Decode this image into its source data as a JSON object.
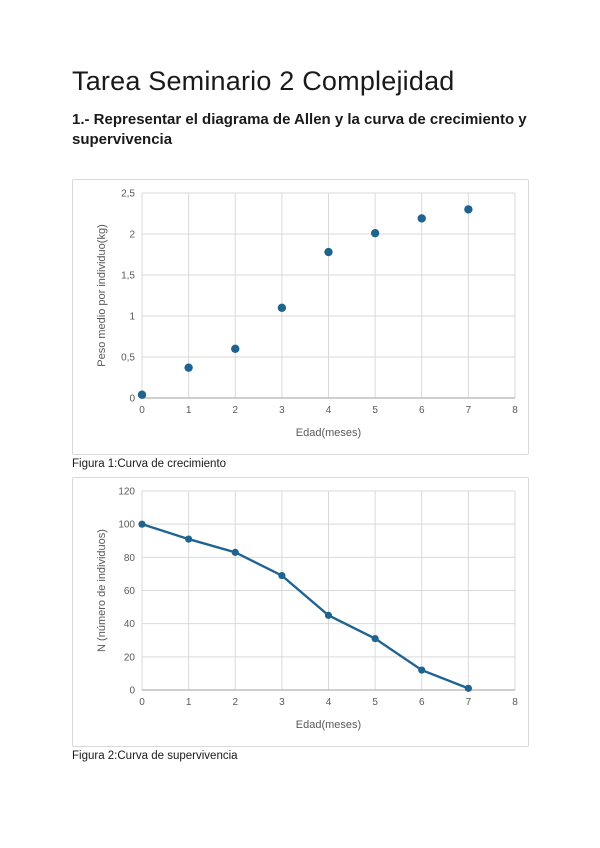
{
  "page": {
    "title": "Tarea Seminario 2 Complejidad",
    "heading": "1.- Representar el diagrama de Allen y la curva de crecimiento y supervivencia"
  },
  "figures": [
    {
      "caption": "Figura 1:Curva de crecimiento"
    },
    {
      "caption": "Figura 2:Curva de supervivencia"
    }
  ],
  "colors": {
    "series": "#1f6490",
    "grid": "#d9d9d9",
    "axis": "#bfbfbf",
    "tick_text": "#595959",
    "chart_border": "#d9d9d9"
  },
  "chart_data": [
    {
      "type": "scatter",
      "x": [
        0,
        1,
        2,
        3,
        4,
        5,
        6,
        7
      ],
      "values": [
        0.04,
        0.37,
        0.6,
        1.1,
        1.78,
        2.01,
        2.19,
        2.3
      ],
      "title": "",
      "xlabel": "Edad(meses)",
      "ylabel": "Peso medio por individuo(kg)",
      "xlim": [
        0,
        8
      ],
      "ylim": [
        0,
        2.5
      ],
      "x_ticks": [
        0,
        1,
        2,
        3,
        4,
        5,
        6,
        7,
        8
      ],
      "x_tick_labels": [
        "0",
        "1",
        "2",
        "3",
        "4",
        "5",
        "6",
        "7",
        "8"
      ],
      "y_ticks": [
        0,
        0.5,
        1,
        1.5,
        2,
        2.5
      ],
      "y_tick_labels": [
        "0",
        "0,5",
        "1",
        "1,5",
        "2",
        "2,5"
      ],
      "grid": true,
      "legend": "none",
      "line": false
    },
    {
      "type": "line",
      "x": [
        0,
        1,
        2,
        3,
        4,
        5,
        6,
        7
      ],
      "values": [
        100,
        91,
        83,
        69,
        45,
        31,
        12,
        1
      ],
      "title": "",
      "xlabel": "Edad(meses)",
      "ylabel": "N (número de individuos)",
      "xlim": [
        0,
        8
      ],
      "ylim": [
        0,
        120
      ],
      "x_ticks": [
        0,
        1,
        2,
        3,
        4,
        5,
        6,
        7,
        8
      ],
      "x_tick_labels": [
        "0",
        "1",
        "2",
        "3",
        "4",
        "5",
        "6",
        "7",
        "8"
      ],
      "y_ticks": [
        0,
        20,
        40,
        60,
        80,
        100,
        120
      ],
      "y_tick_labels": [
        "0",
        "20",
        "40",
        "60",
        "80",
        "100",
        "120"
      ],
      "grid": true,
      "legend": "none",
      "line": true
    }
  ]
}
